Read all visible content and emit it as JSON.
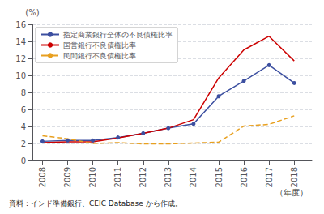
{
  "chart_data": {
    "type": "line",
    "x": [
      2008,
      2009,
      2010,
      2011,
      2012,
      2013,
      2014,
      2015,
      2016,
      2017,
      2018
    ],
    "xlim": [
      2007.6,
      2018.7
    ],
    "xticks": [
      2008,
      2009,
      2010,
      2011,
      2012,
      2013,
      2014,
      2015,
      2016,
      2017,
      2018
    ],
    "ylim": [
      0,
      16
    ],
    "yticks": [
      0,
      2,
      4,
      6,
      8,
      10,
      12,
      14,
      16
    ],
    "y_label": "(%)",
    "x_label": "（年度）",
    "caption": "資料：インド準備銀行、CEIC Database から作成。",
    "grid": true,
    "legend": "upper left",
    "series": [
      {
        "name": "指定商業銀行全体の不良債権比率",
        "color": "#3c4fa0",
        "marker": "o",
        "line_style": "solid",
        "values": [
          2.25,
          2.35,
          2.35,
          2.7,
          3.2,
          3.8,
          4.3,
          7.55,
          9.35,
          11.2,
          9.1
        ]
      },
      {
        "name": "国営銀行不良債権比率",
        "color": "#cc0000",
        "line_style": "solid",
        "values": [
          2.1,
          2.2,
          2.2,
          2.65,
          3.2,
          3.8,
          4.8,
          9.7,
          13.0,
          14.6,
          11.7
        ]
      },
      {
        "name": "民間銀行不良債権比率",
        "color": "#e8a020",
        "line_style": "dashed",
        "values": [
          2.9,
          2.55,
          2.0,
          2.1,
          1.95,
          1.95,
          2.05,
          2.15,
          4.05,
          4.25,
          5.25
        ]
      }
    ]
  }
}
